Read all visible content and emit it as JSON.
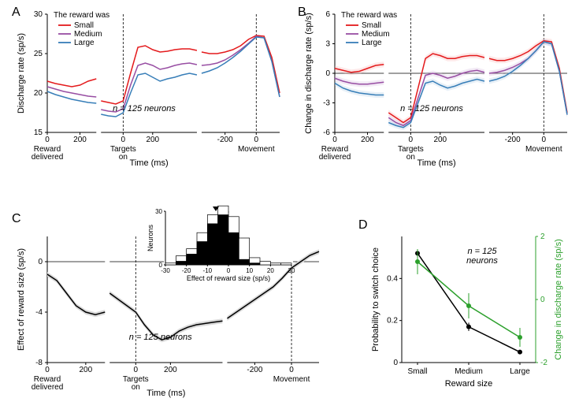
{
  "panelA": {
    "label": "A",
    "type": "line",
    "ylabel": "Discharge rate (sp/s)",
    "xlabel": "Time (ms)",
    "ylim": [
      15,
      30
    ],
    "yticks": [
      15,
      20,
      25,
      30
    ],
    "n_label": "n = 125 neurons",
    "legend_title": "The reward was",
    "series": {
      "Small": {
        "color": "#e41a1c"
      },
      "Medium": {
        "color": "#984ea3"
      },
      "Large": {
        "color": "#377eb8"
      }
    },
    "sub_x_labels": [
      "Reward\ndelivered",
      "Targets\non",
      "Movement"
    ],
    "sub_xticks": [
      [
        0,
        200
      ],
      [
        0,
        200
      ],
      [
        -200,
        0
      ]
    ],
    "data": {
      "sub1": {
        "x": [
          0,
          50,
          100,
          150,
          200,
          250,
          300
        ],
        "Small": [
          21.5,
          21.2,
          21.0,
          20.8,
          21.0,
          21.5,
          21.8
        ],
        "Medium": [
          20.8,
          20.5,
          20.2,
          20.0,
          19.8,
          19.6,
          19.5
        ],
        "Large": [
          20.2,
          19.8,
          19.5,
          19.2,
          19.0,
          18.8,
          18.7
        ]
      },
      "sub2": {
        "x": [
          -150,
          -100,
          -50,
          0,
          50,
          100,
          150,
          200,
          250,
          300,
          350,
          400,
          450,
          500
        ],
        "Small": [
          19.0,
          18.8,
          18.6,
          19.0,
          22.5,
          25.8,
          26.0,
          25.5,
          25.2,
          25.3,
          25.5,
          25.6,
          25.6,
          25.4
        ],
        "Medium": [
          17.9,
          17.7,
          17.6,
          18.0,
          21.0,
          23.5,
          23.8,
          23.5,
          23.0,
          23.2,
          23.5,
          23.7,
          23.8,
          23.6
        ],
        "Large": [
          17.3,
          17.1,
          17.0,
          17.5,
          20.0,
          22.3,
          22.5,
          22.0,
          21.5,
          21.8,
          22.0,
          22.3,
          22.5,
          22.3
        ]
      },
      "sub3": {
        "x": [
          -350,
          -300,
          -250,
          -200,
          -150,
          -100,
          -50,
          0,
          50,
          100,
          150
        ],
        "Small": [
          25.2,
          25.0,
          25.0,
          25.2,
          25.5,
          26.0,
          26.8,
          27.3,
          27.2,
          24.5,
          20.0
        ],
        "Medium": [
          23.5,
          23.6,
          23.8,
          24.2,
          24.8,
          25.5,
          26.3,
          27.2,
          27.0,
          24.0,
          19.5
        ],
        "Large": [
          22.5,
          22.8,
          23.2,
          23.8,
          24.5,
          25.3,
          26.2,
          27.1,
          27.0,
          24.0,
          19.5
        ]
      }
    }
  },
  "panelB": {
    "label": "B",
    "type": "line-shaded",
    "ylabel": "Change in discharge rate (sp/s)",
    "xlabel": "Time (ms)",
    "ylim": [
      -6,
      6
    ],
    "yticks": [
      -6,
      -3,
      0,
      3,
      6
    ],
    "n_label": "n = 125 neurons",
    "legend_title": "The reward was",
    "series": {
      "Small": {
        "color": "#e41a1c",
        "fill": "#f8b4b4"
      },
      "Medium": {
        "color": "#984ea3",
        "fill": "#d5b8dd"
      },
      "Large": {
        "color": "#377eb8",
        "fill": "#b3cde3"
      }
    },
    "sub_x_labels": [
      "Reward\ndelivered",
      "Targets\non",
      "Movement"
    ],
    "sub_xticks": [
      [
        0,
        200
      ],
      [
        0,
        200
      ],
      [
        -200,
        0
      ]
    ],
    "data": {
      "sub1": {
        "x": [
          0,
          50,
          100,
          150,
          200,
          250,
          300
        ],
        "Small": [
          0.5,
          0.3,
          0.1,
          0.2,
          0.5,
          0.8,
          0.9
        ],
        "Medium": [
          -0.5,
          -0.8,
          -1.0,
          -1.1,
          -1.1,
          -1.0,
          -0.9
        ],
        "Large": [
          -1.0,
          -1.5,
          -1.8,
          -2.0,
          -2.1,
          -2.2,
          -2.2
        ]
      },
      "sub2": {
        "x": [
          -150,
          -100,
          -50,
          0,
          50,
          100,
          150,
          200,
          250,
          300,
          350,
          400,
          450,
          500
        ],
        "Small": [
          -4.0,
          -4.5,
          -5.0,
          -4.5,
          -1.5,
          1.5,
          2.0,
          1.8,
          1.5,
          1.5,
          1.7,
          1.8,
          1.8,
          1.6
        ],
        "Medium": [
          -4.5,
          -5.0,
          -5.3,
          -4.8,
          -2.5,
          -0.2,
          0.0,
          -0.2,
          -0.5,
          -0.3,
          0.0,
          0.2,
          0.3,
          0.1
        ],
        "Large": [
          -5.0,
          -5.3,
          -5.5,
          -5.0,
          -3.0,
          -1.0,
          -0.8,
          -1.2,
          -1.5,
          -1.3,
          -1.0,
          -0.8,
          -0.6,
          -0.8
        ]
      },
      "sub3": {
        "x": [
          -350,
          -300,
          -250,
          -200,
          -150,
          -100,
          -50,
          0,
          50,
          100,
          150
        ],
        "Small": [
          1.5,
          1.3,
          1.3,
          1.5,
          1.8,
          2.2,
          2.8,
          3.3,
          3.2,
          0.5,
          -4.0
        ],
        "Medium": [
          0.0,
          0.1,
          0.3,
          0.6,
          1.0,
          1.5,
          2.3,
          3.2,
          3.0,
          0.2,
          -4.2
        ],
        "Large": [
          -0.8,
          -0.6,
          -0.3,
          0.2,
          0.8,
          1.5,
          2.3,
          3.2,
          3.0,
          0.2,
          -4.2
        ]
      }
    }
  },
  "panelC": {
    "label": "C",
    "type": "line-shaded",
    "ylabel": "Effect of reward size (sp/s)",
    "xlabel": "Time (ms)",
    "ylim": [
      -8,
      2
    ],
    "yticks": [
      -8,
      -4,
      0
    ],
    "n_label": "n = 125 neurons",
    "line_color": "#000000",
    "fill_color": "#d9d9d9",
    "sub_x_labels": [
      "Reward\ndelivered",
      "Targets\non",
      "Movement"
    ],
    "sub_xticks": [
      [
        0,
        200
      ],
      [
        0,
        200
      ],
      [
        -200,
        0
      ]
    ],
    "data": {
      "sub1": {
        "x": [
          0,
          50,
          100,
          150,
          200,
          250,
          300
        ],
        "y": [
          -1.0,
          -1.5,
          -2.5,
          -3.5,
          -4.0,
          -4.2,
          -4.0
        ]
      },
      "sub2": {
        "x": [
          -150,
          -100,
          -50,
          0,
          50,
          100,
          150,
          200,
          250,
          300,
          350,
          400,
          450,
          500
        ],
        "y": [
          -2.5,
          -3.0,
          -3.5,
          -4.0,
          -5.0,
          -5.8,
          -6.2,
          -6.0,
          -5.5,
          -5.2,
          -5.0,
          -4.9,
          -4.8,
          -4.7
        ]
      },
      "sub3": {
        "x": [
          -350,
          -300,
          -250,
          -200,
          -150,
          -100,
          -50,
          0,
          50,
          100,
          150
        ],
        "y": [
          -4.5,
          -4.0,
          -3.5,
          -3.0,
          -2.5,
          -2.0,
          -1.3,
          -0.5,
          0.0,
          0.5,
          0.8
        ]
      }
    },
    "inset": {
      "type": "histogram",
      "xlabel": "Effect of reward size (sp/s)",
      "ylabel": "Neurons",
      "xlim": [
        -30,
        30
      ],
      "xticks": [
        -30,
        -20,
        -10,
        0,
        10,
        20,
        30
      ],
      "ylim": [
        0,
        30
      ],
      "yticks": [
        0,
        30
      ],
      "marker_x": -6,
      "bins": [
        -30,
        -25,
        -20,
        -15,
        -10,
        -5,
        0,
        5,
        10,
        15,
        20,
        25,
        30
      ],
      "filled": [
        0,
        2,
        6,
        13,
        23,
        28,
        18,
        3,
        1,
        0,
        0,
        0
      ],
      "outline": [
        1,
        3,
        3,
        5,
        5,
        5,
        9,
        12,
        3,
        2,
        1,
        1
      ]
    }
  },
  "panelD": {
    "label": "D",
    "type": "dual-axis-line",
    "xlabel": "Reward size",
    "categories": [
      "Small",
      "Medium",
      "Large"
    ],
    "n_label": "n = 125\nneurons",
    "left": {
      "ylabel": "Probability to switch choice",
      "color": "#000000",
      "ylim": [
        0,
        0.6
      ],
      "yticks": [
        0,
        0.2,
        0.4
      ],
      "values": [
        0.52,
        0.17,
        0.05
      ],
      "err": [
        0.02,
        0.02,
        0.01
      ]
    },
    "right": {
      "ylabel": "Change in discharge rate (sp/s)",
      "color": "#2ca02c",
      "ylim": [
        -2,
        2
      ],
      "yticks": [
        -2,
        0,
        2
      ],
      "values": [
        1.2,
        -0.2,
        -1.2
      ],
      "err": [
        0.4,
        0.4,
        0.3
      ]
    }
  },
  "colors": {
    "axis": "#000000",
    "grid": "#999999",
    "bg": "#ffffff"
  }
}
